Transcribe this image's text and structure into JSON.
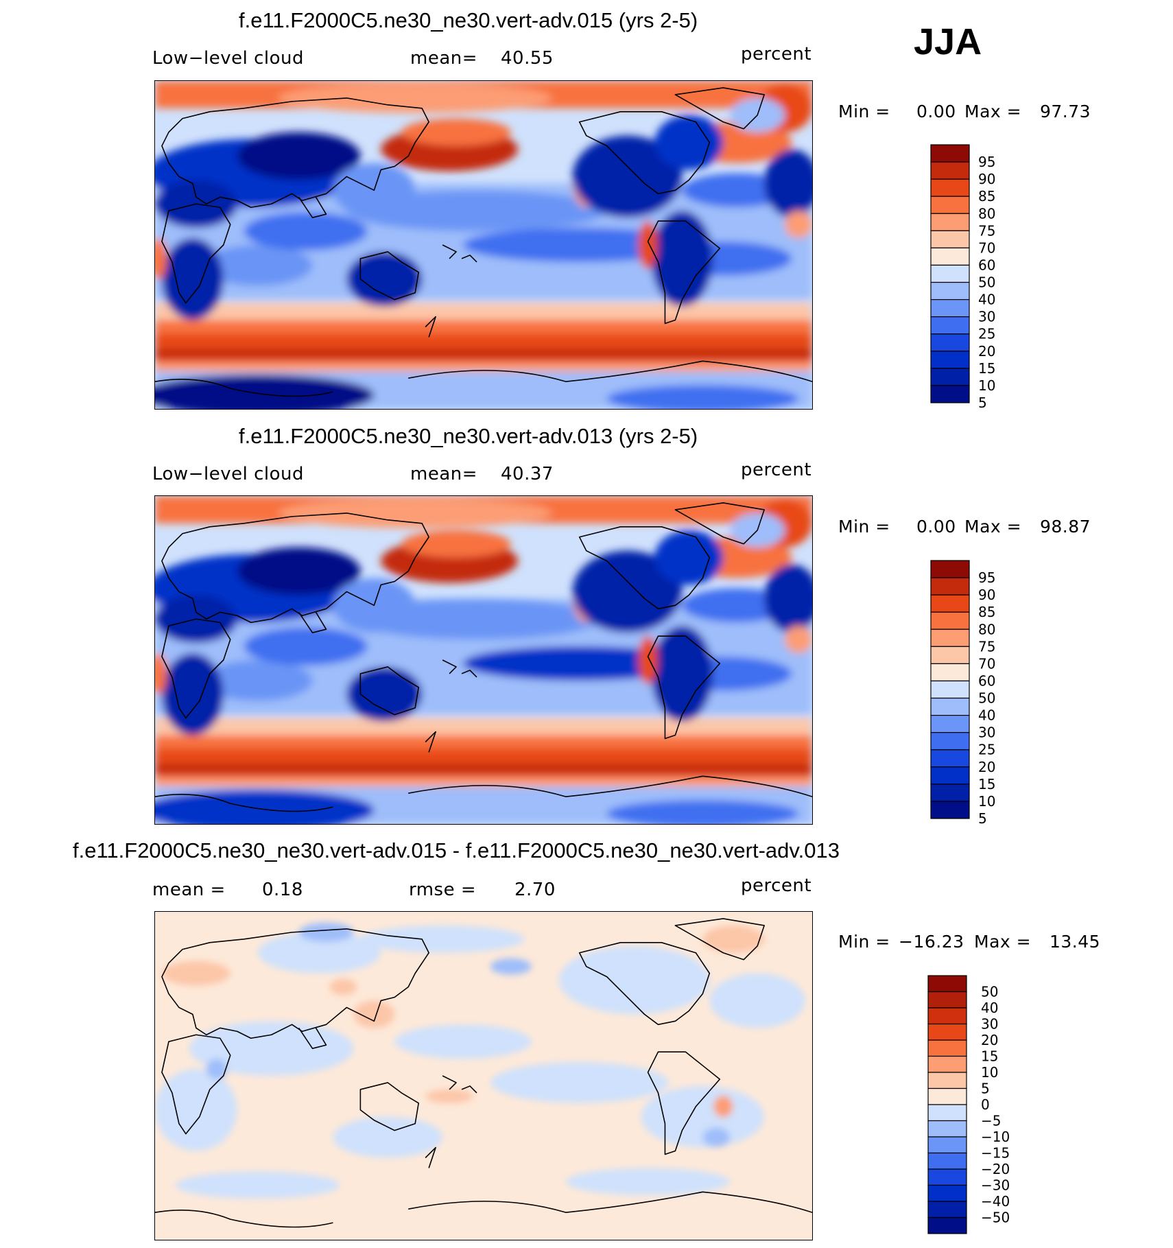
{
  "season": "JJA",
  "colors": {
    "scale15": [
      "#000e87",
      "#0020a8",
      "#0030c8",
      "#1848e0",
      "#3f6ff0",
      "#6b95f6",
      "#9ebdfa",
      "#cfe1fc",
      "#fde9d9",
      "#fcc6a8",
      "#fc9d74",
      "#f8723f",
      "#e84818",
      "#c42a0c",
      "#8e0a04"
    ],
    "scale16": [
      "#000e87",
      "#0020a8",
      "#0030c8",
      "#1848e0",
      "#3f6ff0",
      "#6b95f6",
      "#9ebdfa",
      "#cfe1fc",
      "#fde9d9",
      "#fcc6a8",
      "#fc9d74",
      "#f8723f",
      "#e84818",
      "#d0300e",
      "#b0200a",
      "#8e0a04"
    ]
  },
  "chart_data": [
    {
      "type": "heatmap",
      "title": "f.e11.F2000C5.ne30_ne30.vert-adv.015 (yrs 2-5)",
      "variable": "Low−level cloud",
      "stat_label": "mean=",
      "stat_value": "40.55",
      "units": "percent",
      "min_label": "Min =",
      "min_value": "0.00",
      "max_label": "Max =",
      "max_value": "97.73",
      "colorbar_labels": [
        "95",
        "90",
        "85",
        "80",
        "75",
        "70",
        "60",
        "50",
        "40",
        "30",
        "25",
        "20",
        "15",
        "10",
        "5"
      ],
      "colorbar_levels": [
        5,
        10,
        15,
        20,
        25,
        30,
        40,
        50,
        60,
        70,
        75,
        80,
        85,
        90,
        95
      ]
    },
    {
      "type": "heatmap",
      "title": "f.e11.F2000C5.ne30_ne30.vert-adv.013 (yrs 2-5)",
      "variable": "Low−level cloud",
      "stat_label": "mean=",
      "stat_value": "40.37",
      "units": "percent",
      "min_label": "Min =",
      "min_value": "0.00",
      "max_label": "Max =",
      "max_value": "98.87",
      "colorbar_labels": [
        "95",
        "90",
        "85",
        "80",
        "75",
        "70",
        "60",
        "50",
        "40",
        "30",
        "25",
        "20",
        "15",
        "10",
        "5"
      ],
      "colorbar_levels": [
        5,
        10,
        15,
        20,
        25,
        30,
        40,
        50,
        60,
        70,
        75,
        80,
        85,
        90,
        95
      ]
    },
    {
      "type": "heatmap",
      "title": "f.e11.F2000C5.ne30_ne30.vert-adv.015 - f.e11.F2000C5.ne30_ne30.vert-adv.013",
      "stat_label": "mean =",
      "stat_value": "0.18",
      "stat2_label": "rmse =",
      "stat2_value": "2.70",
      "units": "percent",
      "min_label": "Min =",
      "min_value": "−16.23",
      "max_label": "Max =",
      "max_value": "13.45",
      "colorbar_labels": [
        "50",
        "40",
        "30",
        "20",
        "15",
        "10",
        "5",
        "0",
        "−5",
        "−10",
        "−15",
        "−20",
        "−30",
        "−40",
        "−50"
      ],
      "colorbar_levels": [
        -50,
        -40,
        -30,
        -20,
        -15,
        -10,
        -5,
        0,
        5,
        10,
        15,
        20,
        30,
        40,
        50
      ]
    }
  ]
}
